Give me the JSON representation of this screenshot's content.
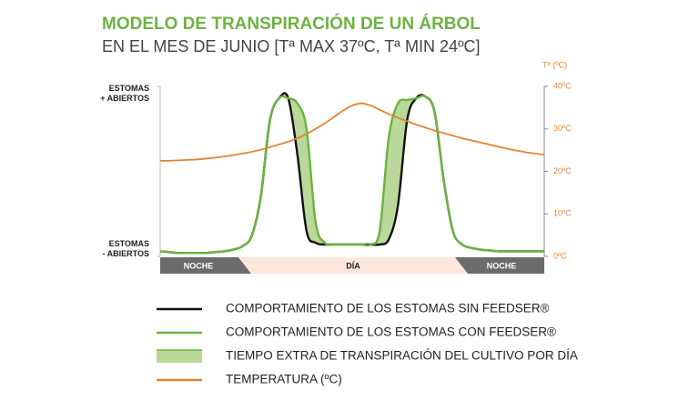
{
  "chart_data": {
    "type": "line",
    "title": "MODELO DE TRANSPIRACIÓN DE UN ÁRBOL",
    "subtitle": "EN EL MES DE JUNIO [Tª MAX 37ºC, Tª MIN 24ºC]",
    "y2_label": "Tª (ºC)",
    "ylim": [
      0,
      1
    ],
    "yticks": [
      {
        "value": 0,
        "label": "ESTOMAS - ABIERTOS"
      },
      {
        "value": 1,
        "label": "ESTOMAS + ABIERTOS"
      }
    ],
    "y2lim": [
      0,
      40
    ],
    "y2ticks": [
      {
        "value": 0,
        "label": "0ºC"
      },
      {
        "value": 10,
        "label": "10ºC"
      },
      {
        "value": 20,
        "label": "20ºC"
      },
      {
        "value": 30,
        "label": "30ºC"
      },
      {
        "value": 40,
        "label": "40ºC"
      }
    ],
    "bands": [
      "NOCHE",
      "DÍA",
      "NOCHE"
    ],
    "area_label": "TIEMPO EXTRA DE TRANSPIRACIÓN DEL CULTIVO POR DÍA",
    "area_color": "#b9d89a",
    "series": [
      {
        "name": "COMPORTAMIENTO DE LOS ESTOMAS SIN FEEDSER®",
        "color": "#111111",
        "values": [
          0.03,
          0.025,
          0.02,
          0.02,
          0.02,
          0.02,
          0.025,
          0.03,
          0.04,
          0.06,
          0.12,
          0.35,
          0.8,
          0.93,
          0.93,
          0.6,
          0.15,
          0.08,
          0.07,
          0.07,
          0.07,
          0.07,
          0.07,
          0.07,
          0.07,
          0.1,
          0.3,
          0.8,
          0.93,
          0.94,
          0.85,
          0.45,
          0.15,
          0.07,
          0.05,
          0.04,
          0.035,
          0.03,
          0.03,
          0.03,
          0.03,
          0.03,
          0.03
        ]
      },
      {
        "name": "COMPORTAMIENTO DE LOS ESTOMAS CON FEEDSER®",
        "color": "#6cb33f",
        "values": [
          0.03,
          0.025,
          0.02,
          0.02,
          0.02,
          0.02,
          0.025,
          0.03,
          0.04,
          0.06,
          0.12,
          0.35,
          0.8,
          0.93,
          0.93,
          0.9,
          0.75,
          0.2,
          0.08,
          0.07,
          0.07,
          0.07,
          0.07,
          0.07,
          0.15,
          0.7,
          0.9,
          0.92,
          0.93,
          0.94,
          0.85,
          0.45,
          0.15,
          0.07,
          0.05,
          0.04,
          0.035,
          0.03,
          0.03,
          0.03,
          0.03,
          0.03,
          0.03
        ]
      },
      {
        "name": "TEMPERATURA (ºC)",
        "color": "#e8822e",
        "axis": "y2",
        "values": [
          22.5,
          22.5,
          22.6,
          22.7,
          22.8,
          23,
          23.2,
          23.5,
          23.8,
          24.2,
          24.6,
          25.1,
          25.7,
          26.3,
          27,
          27.8,
          28.8,
          30,
          31.3,
          32.8,
          34.3,
          35.5,
          36,
          35.5,
          34.5,
          33.5,
          32.6,
          31.8,
          31,
          30.3,
          29.6,
          29,
          28.4,
          27.8,
          27.3,
          26.8,
          26.3,
          25.8,
          25.3,
          24.9,
          24.5,
          24.2,
          23.9
        ]
      }
    ]
  }
}
